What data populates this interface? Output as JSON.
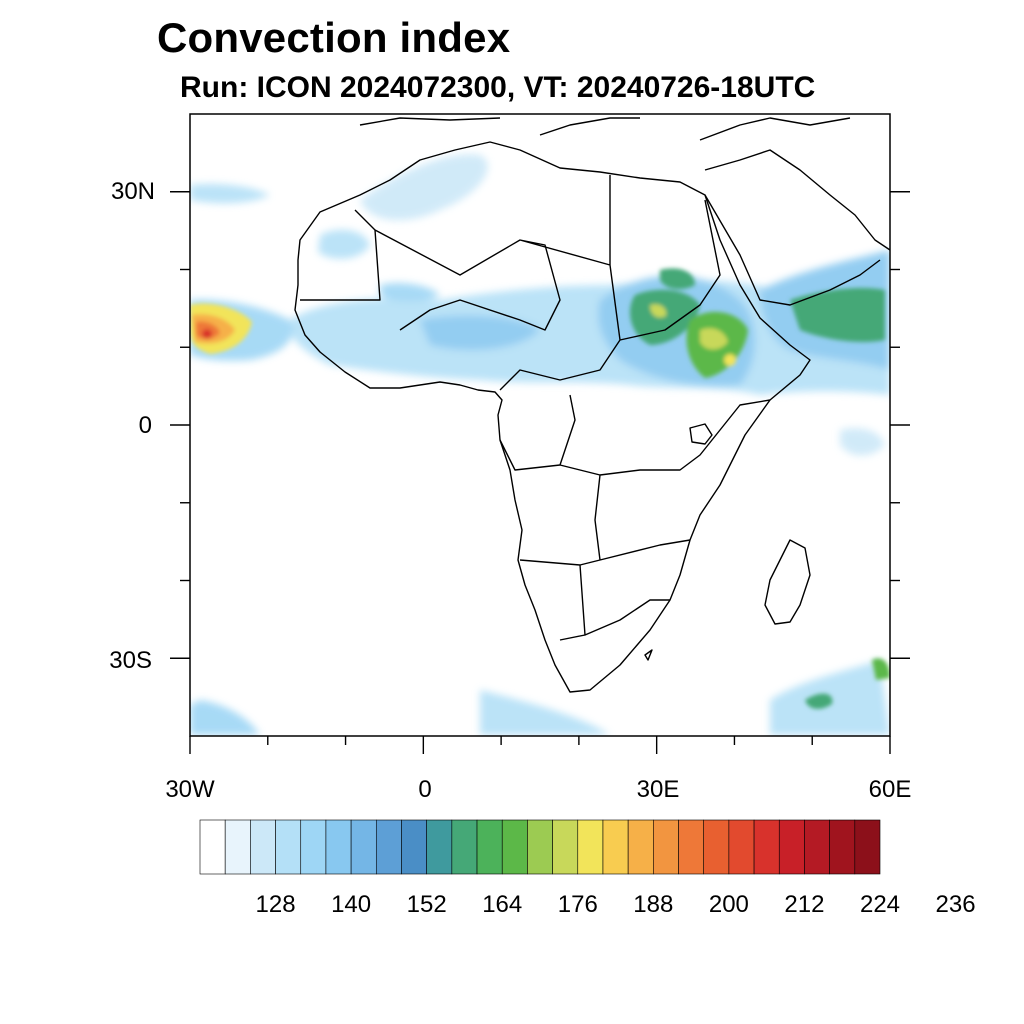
{
  "title": "Convection index",
  "subtitle": "Run: ICON 2024072300,  VT: 20240726-18UTC",
  "axes": {
    "lat_labels": [
      "30N",
      "0",
      "30S"
    ],
    "lon_labels": [
      "30W",
      "0",
      "30E",
      "60E"
    ],
    "lon_range": [
      -30,
      60
    ],
    "lat_range": [
      -40,
      40
    ]
  },
  "colorbar": {
    "tick_labels": [
      "128",
      "140",
      "152",
      "164",
      "176",
      "188",
      "200",
      "212",
      "224",
      "236"
    ],
    "colors": [
      "#ffffff",
      "#e8f4fc",
      "#cce8f8",
      "#b4e0f7",
      "#9ed6f5",
      "#88c8f0",
      "#74b6e6",
      "#5d9fd6",
      "#4a8ec6",
      "#3f9a9e",
      "#45a877",
      "#4cb25a",
      "#5cb848",
      "#9ccb52",
      "#c8d85a",
      "#f2e45a",
      "#f8cc50",
      "#f6b048",
      "#f29540",
      "#ee7838",
      "#e86030",
      "#e24a2e",
      "#d8322c",
      "#c82028",
      "#b41a24",
      "#a0141e",
      "#8c101a"
    ]
  }
}
